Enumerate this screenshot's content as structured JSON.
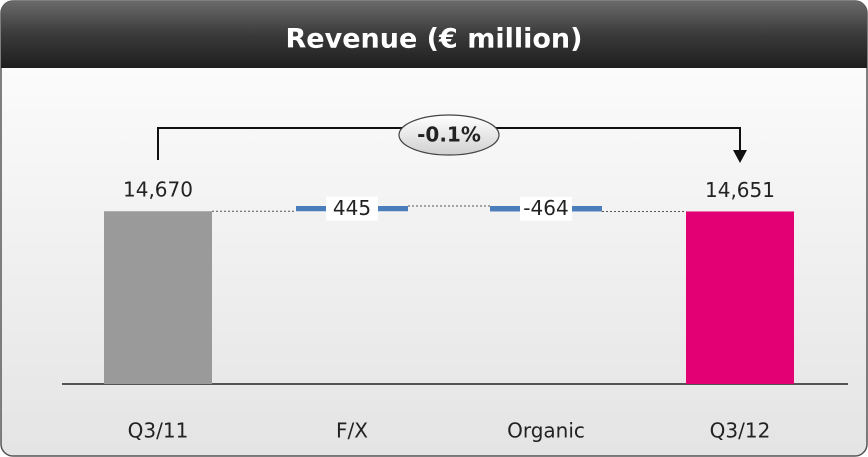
{
  "chart_data": {
    "type": "waterfall",
    "title": "Revenue (€ million)",
    "categories": [
      "Q3/11",
      "F/X",
      "Organic",
      "Q3/12"
    ],
    "values": [
      14670,
      445,
      -464,
      14651
    ],
    "value_labels": [
      "14,670",
      "445",
      "-464",
      "14,651"
    ],
    "colors": [
      "#9a9a9a",
      "#4a7ebb",
      "#4a7ebb",
      "#e20074"
    ],
    "annotation": "-0.1%"
  }
}
